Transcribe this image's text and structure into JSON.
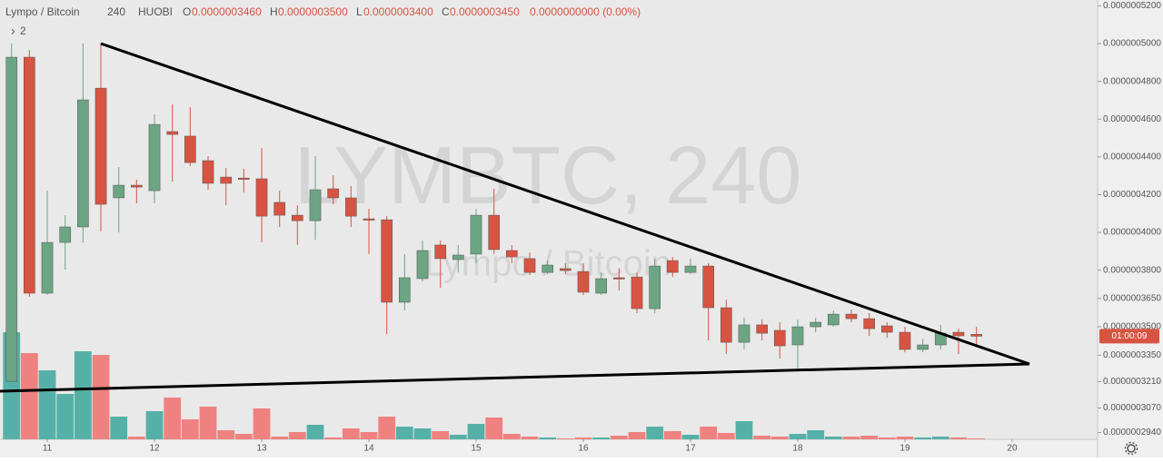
{
  "header": {
    "symbol": "Lympo / Bitcoin",
    "interval": "240",
    "exchange": "HUOBI",
    "ohlc": [
      {
        "label": "O",
        "value": "0.0000003460"
      },
      {
        "label": "H",
        "value": "0.0000003500"
      },
      {
        "label": "L",
        "value": "0.0000003400"
      },
      {
        "label": "C",
        "value": "0.0000003450"
      }
    ],
    "change": "0.0000000000 (0.00%)",
    "hidden_indicators": "2"
  },
  "chart_data": {
    "type": "candlestick",
    "watermark": "LYMBTC, 240",
    "watermark_subtitle": "Lympo / Bitcoin",
    "countdown": "01:00:09",
    "x": [
      10.667,
      10.833,
      11,
      11.167,
      11.333,
      11.5,
      11.667,
      11.833,
      12,
      12.167,
      12.333,
      12.5,
      12.667,
      12.833,
      13,
      13.167,
      13.333,
      13.5,
      13.667,
      13.833,
      14,
      14.167,
      14.333,
      14.5,
      14.667,
      14.833,
      15,
      15.167,
      15.333,
      15.5,
      15.667,
      15.833,
      16,
      16.167,
      16.333,
      16.5,
      16.667,
      16.833,
      17,
      17.167,
      17.333,
      17.5,
      17.667,
      17.833,
      18,
      18.167,
      18.333,
      18.5,
      18.667,
      18.833,
      19,
      19.167,
      19.333,
      19.5,
      19.667
    ],
    "open": [
      3.211e-07,
      4.928e-07,
      3.678e-07,
      3.947e-07,
      4.029e-07,
      4.764e-07,
      4.183e-07,
      4.25e-07,
      4.221e-07,
      4.534e-07,
      4.51e-07,
      4.38e-07,
      4.293e-07,
      4.288e-07,
      4.284e-07,
      4.159e-07,
      4.091e-07,
      4.062e-07,
      4.231e-07,
      4.183e-07,
      4.072e-07,
      4.067e-07,
      3.63e-07,
      3.755e-07,
      3.933e-07,
      3.856e-07,
      3.885e-07,
      4.091e-07,
      3.904e-07,
      3.861e-07,
      3.788e-07,
      3.808e-07,
      3.793e-07,
      3.678e-07,
      3.76e-07,
      3.764e-07,
      3.596e-07,
      3.851e-07,
      3.788e-07,
      3.822e-07,
      3.601e-07,
      3.418e-07,
      3.51e-07,
      3.481e-07,
      3.404e-07,
      3.5e-07,
      3.51e-07,
      3.567e-07,
      3.543e-07,
      3.505e-07,
      3.471e-07,
      3.38e-07,
      3.404e-07,
      3.471e-07,
      3.46e-07
    ],
    "high": [
      5e-07,
      4.966e-07,
      4.221e-07,
      4.091e-07,
      5e-07,
      5e-07,
      4.346e-07,
      4.279e-07,
      4.625e-07,
      4.678e-07,
      4.663e-07,
      4.404e-07,
      4.341e-07,
      4.337e-07,
      4.447e-07,
      4.221e-07,
      4.144e-07,
      4.404e-07,
      4.303e-07,
      4.245e-07,
      4.125e-07,
      4.086e-07,
      3.885e-07,
      3.957e-07,
      3.957e-07,
      3.933e-07,
      4.125e-07,
      4.231e-07,
      3.933e-07,
      3.894e-07,
      3.851e-07,
      3.837e-07,
      3.837e-07,
      3.788e-07,
      3.812e-07,
      3.788e-07,
      3.861e-07,
      3.87e-07,
      3.861e-07,
      3.837e-07,
      3.644e-07,
      3.548e-07,
      3.538e-07,
      3.524e-07,
      3.538e-07,
      3.548e-07,
      3.586e-07,
      3.591e-07,
      3.572e-07,
      3.524e-07,
      3.5e-07,
      3.437e-07,
      3.51e-07,
      3.49e-07,
      3.5e-07
    ],
    "low": [
      3.202e-07,
      3.659e-07,
      3.67e-07,
      3.803e-07,
      3.947e-07,
      4.005e-07,
      4e-07,
      4.154e-07,
      4.154e-07,
      4.269e-07,
      4.351e-07,
      4.226e-07,
      4.144e-07,
      4.211e-07,
      3.947e-07,
      4.029e-07,
      3.933e-07,
      3.961e-07,
      4.149e-07,
      4.029e-07,
      3.885e-07,
      3.462e-07,
      3.586e-07,
      3.74e-07,
      3.707e-07,
      3.788e-07,
      3.837e-07,
      3.885e-07,
      3.837e-07,
      3.774e-07,
      3.779e-07,
      3.779e-07,
      3.668e-07,
      3.668e-07,
      3.692e-07,
      3.572e-07,
      3.572e-07,
      3.764e-07,
      3.779e-07,
      3.428e-07,
      3.356e-07,
      3.38e-07,
      3.428e-07,
      3.332e-07,
      3.274e-07,
      3.471e-07,
      3.5e-07,
      3.524e-07,
      3.452e-07,
      3.442e-07,
      3.365e-07,
      3.365e-07,
      3.38e-07,
      3.356e-07,
      3.4e-07
    ],
    "close": [
      4.928e-07,
      3.678e-07,
      3.947e-07,
      4.029e-07,
      4.702e-07,
      4.149e-07,
      4.25e-07,
      4.24e-07,
      4.572e-07,
      4.519e-07,
      4.37e-07,
      4.26e-07,
      4.26e-07,
      4.284e-07,
      4.086e-07,
      4.091e-07,
      4.062e-07,
      4.226e-07,
      4.183e-07,
      4.086e-07,
      4.067e-07,
      3.63e-07,
      3.76e-07,
      3.904e-07,
      3.861e-07,
      3.88e-07,
      4.091e-07,
      3.909e-07,
      3.87e-07,
      3.788e-07,
      3.827e-07,
      3.798e-07,
      3.683e-07,
      3.755e-07,
      3.755e-07,
      3.596e-07,
      3.822e-07,
      3.788e-07,
      3.822e-07,
      3.601e-07,
      3.418e-07,
      3.51e-07,
      3.466e-07,
      3.399e-07,
      3.5e-07,
      3.524e-07,
      3.567e-07,
      3.543e-07,
      3.49e-07,
      3.471e-07,
      3.38e-07,
      3.404e-07,
      3.466e-07,
      3.452e-07,
      3.45e-07
    ],
    "volume": [
      118,
      95,
      76,
      50,
      97,
      93,
      25,
      3,
      31,
      46,
      22,
      36,
      10,
      6,
      34,
      3,
      8,
      16,
      2,
      12,
      8,
      25,
      14,
      12,
      9,
      5,
      17,
      24,
      6,
      3,
      2,
      1,
      2,
      2,
      4,
      8,
      14,
      9,
      5,
      14,
      7,
      20,
      4,
      3,
      6,
      10,
      3,
      3,
      4,
      2,
      3,
      2,
      3,
      2,
      1
    ],
    "up_color": "#6ba583",
    "down_color": "#d75442",
    "volume_up_color": "#55b1a7",
    "volume_down_color": "#ef8280",
    "xlim": [
      10.559,
      20.797
    ],
    "xticks": [
      11,
      12,
      13,
      14,
      15,
      16,
      17,
      18,
      19,
      20
    ],
    "ylim": [
      2.904e-07,
      5.231e-07
    ],
    "yticks": [
      {
        "value": 5.2e-07,
        "label": "0.0000005200"
      },
      {
        "value": 5e-07,
        "label": "0.0000005000"
      },
      {
        "value": 4.8e-07,
        "label": "0.0000004800"
      },
      {
        "value": 4.6e-07,
        "label": "0.0000004600"
      },
      {
        "value": 4.4e-07,
        "label": "0.0000004400"
      },
      {
        "value": 4.2e-07,
        "label": "0.0000004200"
      },
      {
        "value": 4e-07,
        "label": "0.0000004000"
      },
      {
        "value": 3.8e-07,
        "label": "0.0000003800"
      },
      {
        "value": 3.65e-07,
        "label": "0.0000003650"
      },
      {
        "value": 3.5e-07,
        "label": "0.0000003500"
      },
      {
        "value": 3.35e-07,
        "label": "0.0000003350"
      },
      {
        "value": 3.21e-07,
        "label": "0.0000003210"
      },
      {
        "value": 3.07e-07,
        "label": "0.0000003070"
      },
      {
        "value": 2.94e-07,
        "label": "0.0000002940"
      }
    ],
    "volume_lim": [
      0,
      484
    ]
  }
}
